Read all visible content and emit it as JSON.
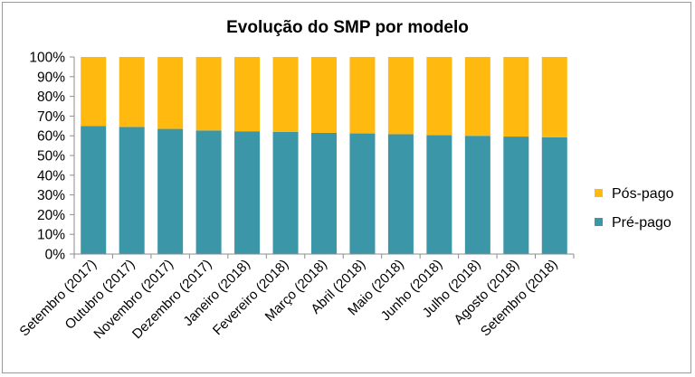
{
  "chart_data": {
    "type": "bar",
    "stacked": true,
    "title": "Evolução do SMP por modelo",
    "categories": [
      "Setembro (2017)",
      "Outubro (2017)",
      "Novembro (2017)",
      "Dezembro (2017)",
      "Janeiro (2018)",
      "Fevereiro (2018)",
      "Março (2018)",
      "Abril (2018)",
      "Maio (2018)",
      "Junho (2018)",
      "Julho (2018)",
      "Agosto (2018)",
      "Setembro (2018)"
    ],
    "series": [
      {
        "name": "Pré-pago",
        "color": "#3b96a8",
        "values": [
          65,
          64.5,
          63.5,
          62.7,
          62.3,
          62.0,
          61.5,
          61.2,
          60.8,
          60.3,
          60.0,
          59.6,
          59.2
        ]
      },
      {
        "name": "Pós-pago",
        "color": "#ffb90f",
        "values": [
          35,
          35.5,
          36.5,
          37.3,
          37.7,
          38.0,
          38.5,
          38.8,
          39.2,
          39.7,
          40.0,
          40.4,
          40.8
        ]
      }
    ],
    "ylim": [
      0,
      100
    ],
    "yticks": [
      "0%",
      "10%",
      "20%",
      "30%",
      "40%",
      "50%",
      "60%",
      "70%",
      "80%",
      "90%",
      "100%"
    ],
    "grid": false,
    "legend": "right"
  }
}
